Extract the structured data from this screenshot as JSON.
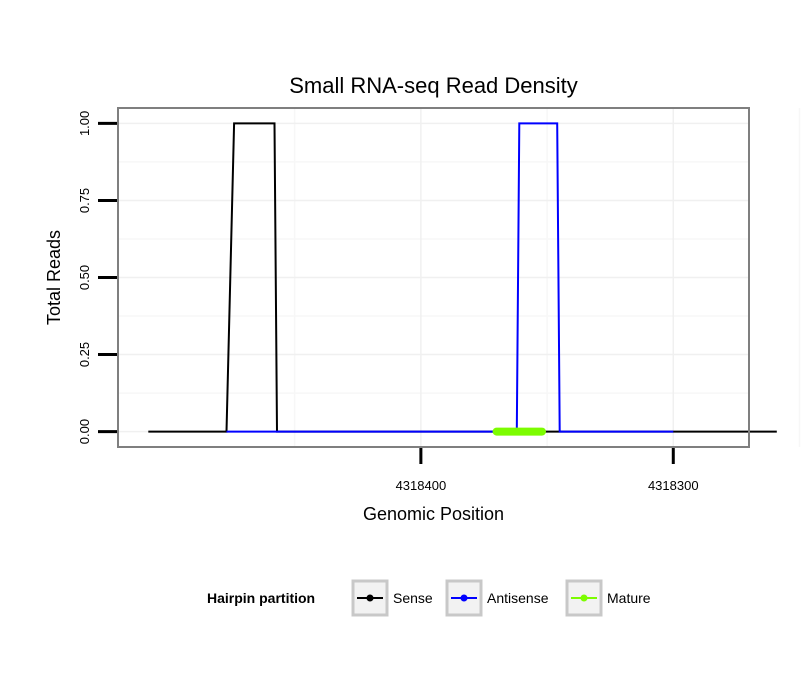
{
  "chart_data": {
    "type": "line",
    "title": "Small RNA-seq Read Density",
    "xlabel": "Genomic Position",
    "ylabel": "Total Reads",
    "x_reversed": true,
    "xlim": [
      4318520,
      4318270
    ],
    "ylim": [
      -0.05,
      1.05
    ],
    "x_ticks": [
      4318400,
      4318300
    ],
    "x_tick_labels": [
      "4318400",
      "4318300"
    ],
    "y_ticks": [
      0,
      0.25,
      0.5,
      0.75,
      1.0
    ],
    "y_tick_labels": [
      "0.00",
      "0.25",
      "0.50",
      "0.75",
      "1.00"
    ],
    "grid": true,
    "series": [
      {
        "name": "Sense",
        "color": "#000000",
        "x": [
          4318508,
          4318477,
          4318474,
          4318458,
          4318457,
          4318259
        ],
        "y": [
          0,
          0,
          1,
          1,
          0,
          0
        ]
      },
      {
        "name": "Antisense",
        "color": "#0000ff",
        "x": [
          4318477,
          4318457,
          4318380,
          4318362,
          4318361,
          4318346,
          4318345,
          4318300
        ],
        "y": [
          0,
          0,
          0,
          0,
          1,
          1,
          0,
          0
        ]
      },
      {
        "name": "Mature",
        "color": "#7cfc00",
        "x": [
          4318370,
          4318352
        ],
        "y": [
          0,
          0
        ]
      }
    ],
    "legend": {
      "title": "Hairpin partition",
      "placement": "bottom",
      "entries": [
        "Sense",
        "Antisense",
        "Mature"
      ]
    }
  }
}
